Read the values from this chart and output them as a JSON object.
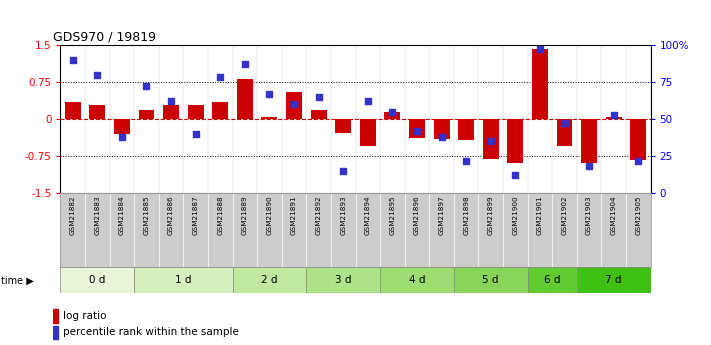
{
  "title": "GDS970 / 19819",
  "samples": [
    "GSM21882",
    "GSM21883",
    "GSM21884",
    "GSM21885",
    "GSM21886",
    "GSM21887",
    "GSM21888",
    "GSM21889",
    "GSM21890",
    "GSM21891",
    "GSM21892",
    "GSM21893",
    "GSM21894",
    "GSM21895",
    "GSM21896",
    "GSM21897",
    "GSM21898",
    "GSM21899",
    "GSM21900",
    "GSM21901",
    "GSM21902",
    "GSM21903",
    "GSM21904",
    "GSM21905"
  ],
  "log_ratio": [
    0.35,
    0.28,
    -0.3,
    0.18,
    0.28,
    0.28,
    0.35,
    0.8,
    0.05,
    0.55,
    0.18,
    -0.28,
    -0.55,
    0.15,
    -0.38,
    -0.4,
    -0.42,
    -0.8,
    -0.88,
    1.42,
    -0.55,
    -0.88,
    0.05,
    -0.82
  ],
  "percentile": [
    90,
    80,
    38,
    72,
    62,
    40,
    78,
    87,
    67,
    60,
    65,
    15,
    62,
    55,
    42,
    38,
    22,
    35,
    12,
    97,
    47,
    18,
    53,
    22
  ],
  "time_groups": {
    "0 d": [
      0,
      1,
      2
    ],
    "1 d": [
      3,
      4,
      5,
      6
    ],
    "2 d": [
      7,
      8,
      9
    ],
    "3 d": [
      10,
      11,
      12
    ],
    "4 d": [
      13,
      14,
      15
    ],
    "5 d": [
      16,
      17,
      18
    ],
    "6 d": [
      19,
      20
    ],
    "7 d": [
      21,
      22,
      23
    ]
  },
  "time_group_list": [
    "0 d",
    "1 d",
    "2 d",
    "3 d",
    "4 d",
    "5 d",
    "6 d",
    "7 d"
  ],
  "green_list": [
    "#e8f5d8",
    "#d4eebc",
    "#c0e8a0",
    "#aee288",
    "#9cdc70",
    "#88d458",
    "#60cc30",
    "#40c010"
  ],
  "bar_color": "#cc0000",
  "dot_color": "#3333cc",
  "ylim": [
    -1.5,
    1.5
  ],
  "yticks_left": [
    -1.5,
    -0.75,
    0.0,
    0.75,
    1.5
  ],
  "ytick_left_labels": [
    "-1.5",
    "-0.75",
    "0",
    "0.75",
    "1.5"
  ],
  "ytick_right_labels": [
    "0",
    "25",
    "50",
    "75",
    "100%"
  ],
  "hlines_dotted": [
    -0.75,
    0.75
  ],
  "bg_color": "#ffffff",
  "sample_bg_color": "#cccccc",
  "bar_width": 0.65
}
